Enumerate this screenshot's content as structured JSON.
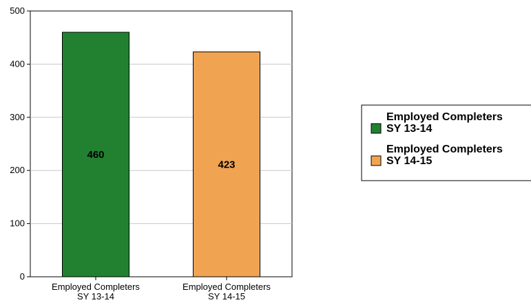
{
  "chart_data": {
    "type": "bar",
    "categories": [
      "Employed Completers SY 13-14",
      "Employed Completers SY 14-15"
    ],
    "category_lines": [
      [
        "Employed Completers",
        "SY 13-14"
      ],
      [
        "Employed Completers",
        "SY 14-15"
      ]
    ],
    "values": [
      460,
      423
    ],
    "data_labels": [
      "460",
      "423"
    ],
    "colors": [
      "#218131",
      "#f0a452"
    ],
    "ylim": [
      0,
      500
    ],
    "yticks": [
      0,
      100,
      200,
      300,
      400,
      500
    ],
    "grid": true,
    "legend": {
      "placement": "right",
      "entries": [
        {
          "lines": [
            "Employed Completers",
            "SY 13-14"
          ],
          "color": "#218131"
        },
        {
          "lines": [
            "Employed Completers",
            "SY 14-15"
          ],
          "color": "#f0a452"
        }
      ]
    },
    "title": "",
    "xlabel": "",
    "ylabel": ""
  }
}
